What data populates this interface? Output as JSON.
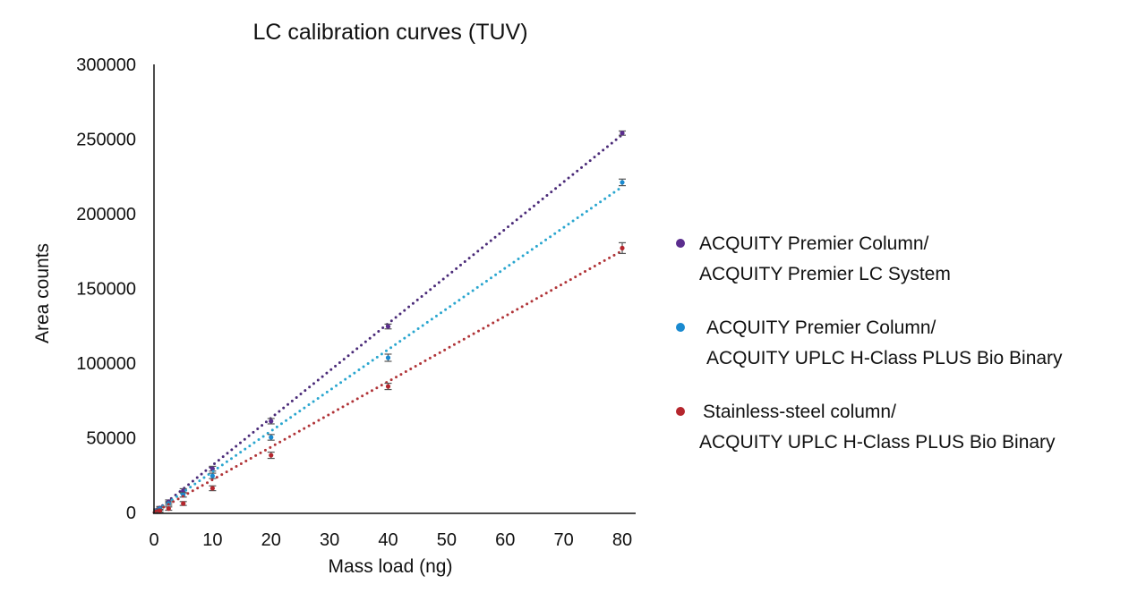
{
  "chart_data": {
    "type": "scatter",
    "title": "LC calibration curves (TUV)",
    "xlabel": "Mass load (ng)",
    "ylabel": "Area counts",
    "xlim": [
      0,
      80
    ],
    "ylim": [
      0,
      300000
    ],
    "xticks": [
      "0",
      "10",
      "20",
      "30",
      "40",
      "50",
      "60",
      "70",
      "80"
    ],
    "yticks": [
      "0",
      "50000",
      "100000",
      "150000",
      "200000",
      "250000",
      "300000"
    ],
    "xtick_values": [
      0,
      10,
      20,
      30,
      40,
      50,
      60,
      70,
      80
    ],
    "ytick_values": [
      0,
      50000,
      100000,
      150000,
      200000,
      250000,
      300000
    ],
    "grid": false,
    "legend_position": "right",
    "trendline": "linear, dotted",
    "error_bars": true,
    "series": [
      {
        "name": "ACQUITY Premier Column/ ACQUITY Premier LC System",
        "legend_lines": [
          "ACQUITY Premier Column/",
          "ACQUITY Premier LC System"
        ],
        "color": "#5b2d8e",
        "line_color": "#4a2a78",
        "x": [
          0.5,
          1,
          2.5,
          5,
          10,
          20,
          40,
          80
        ],
        "y": [
          1500,
          3000,
          7200,
          14500,
          29300,
          61100,
          124500,
          254000
        ],
        "err": [
          300,
          400,
          600,
          800,
          1000,
          1200,
          1000,
          800
        ]
      },
      {
        "name": "ACQUITY Premier Column/ ACQUITY UPLC H-Class PLUS Bio Binary",
        "legend_lines": [
          "ACQUITY Premier Column/",
          "ACQUITY UPLC H-Class PLUS Bio Binary"
        ],
        "color": "#1a8ad0",
        "line_color": "#2aa6cf",
        "x": [
          0.5,
          1,
          2.5,
          5,
          10,
          20,
          40,
          80
        ],
        "y": [
          1200,
          2500,
          6000,
          11800,
          24500,
          50300,
          103600,
          221000
        ],
        "err": [
          300,
          400,
          600,
          900,
          1200,
          1300,
          1800,
          1600
        ]
      },
      {
        "name": "Stainless-steel column/ ACQUITY UPLC H-Class PLUS Bio Binary",
        "legend_lines": [
          "Stainless-steel column/",
          "ACQUITY UPLC H-Class PLUS Bio Binary"
        ],
        "color": "#b5262d",
        "line_color": "#b03438",
        "x": [
          0.5,
          1,
          2.5,
          5,
          10,
          20,
          40,
          80
        ],
        "y": [
          600,
          1200,
          2600,
          6000,
          16200,
          38300,
          84400,
          177000
        ],
        "err": [
          300,
          400,
          500,
          700,
          1000,
          1500,
          1500,
          3000
        ]
      }
    ]
  }
}
